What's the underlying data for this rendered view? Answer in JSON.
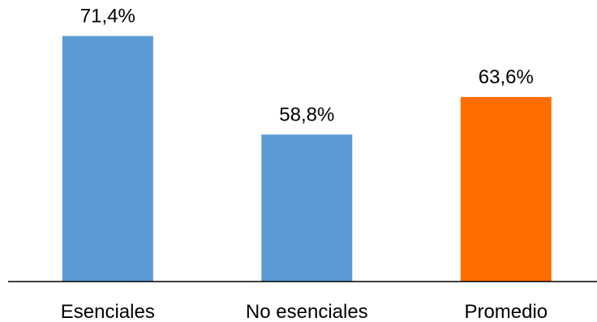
{
  "chart_data": {
    "type": "bar",
    "categories": [
      "Esenciales",
      "No esenciales",
      "Promedio"
    ],
    "values": [
      71.4,
      58.8,
      63.6
    ],
    "data_labels": [
      "71,4%",
      "58,8%",
      "63,6%"
    ],
    "colors": [
      "#5b9bd5",
      "#5b9bd5",
      "#ff6d00"
    ],
    "axis_color": "#000000",
    "title": "",
    "xlabel": "",
    "ylabel": "",
    "ylim": [
      40,
      76
    ],
    "grid": false,
    "legend": "none"
  }
}
